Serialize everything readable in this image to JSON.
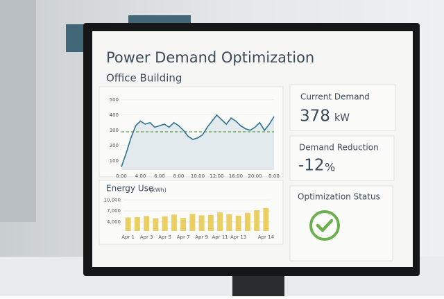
{
  "header": {
    "title": "Power Demand Optimization",
    "subtitle": "Office Building"
  },
  "chart_data": [
    {
      "type": "line",
      "categories": [
        "0:00",
        null,
        null,
        null,
        "4:00",
        null,
        null,
        null,
        "6:00",
        null,
        null,
        null,
        "8:00",
        null,
        null,
        null,
        "10:00",
        null,
        null,
        null,
        "12:00",
        null,
        null,
        null,
        "16:00",
        null,
        null,
        null,
        "20:00",
        null,
        null,
        null,
        "0:00"
      ],
      "series": [
        {
          "color": "#2e6f8e",
          "values": [
            60,
            150,
            250,
            330,
            360,
            340,
            350,
            320,
            330,
            340,
            320,
            350,
            330,
            300,
            260,
            240,
            250,
            270,
            320,
            360,
            400,
            370,
            340,
            380,
            360,
            330,
            310,
            300,
            320,
            350,
            300,
            340,
            390
          ]
        }
      ],
      "ylim": [
        40,
        540
      ],
      "yticks": [
        100,
        200,
        300,
        400,
        500
      ],
      "reference": {
        "value": 290,
        "color": "#5aaa3c"
      },
      "fill": "#e2eaee"
    },
    {
      "type": "bar",
      "title": "Energy Use",
      "unit": "(kWh)",
      "categories": [
        "Apr 1",
        null,
        "Apr 3",
        null,
        "Apr 5",
        null,
        "Apr 7",
        null,
        "Apr 9",
        null,
        "Apr 11",
        null,
        "Apr 13",
        null,
        null,
        "Apr 14"
      ],
      "values": [
        5200,
        5300,
        5600,
        5000,
        5500,
        6000,
        5100,
        6200,
        5800,
        5900,
        6600,
        6100,
        5700,
        6500,
        7200,
        7800
      ],
      "color": "#ead064",
      "ylim": [
        1500,
        11000
      ],
      "yticks": [
        {
          "value": 4000,
          "label": "4,000"
        },
        {
          "value": 7000,
          "label": "7,000"
        },
        {
          "value": 10000,
          "label": "10,000"
        }
      ]
    }
  ],
  "cards": [
    {
      "label": "Current Demand",
      "value": 378,
      "unit": "kW"
    },
    {
      "label": "Demand Reduction",
      "value": -12,
      "unit": "%"
    },
    {
      "label": "Optimization Status"
    }
  ]
}
